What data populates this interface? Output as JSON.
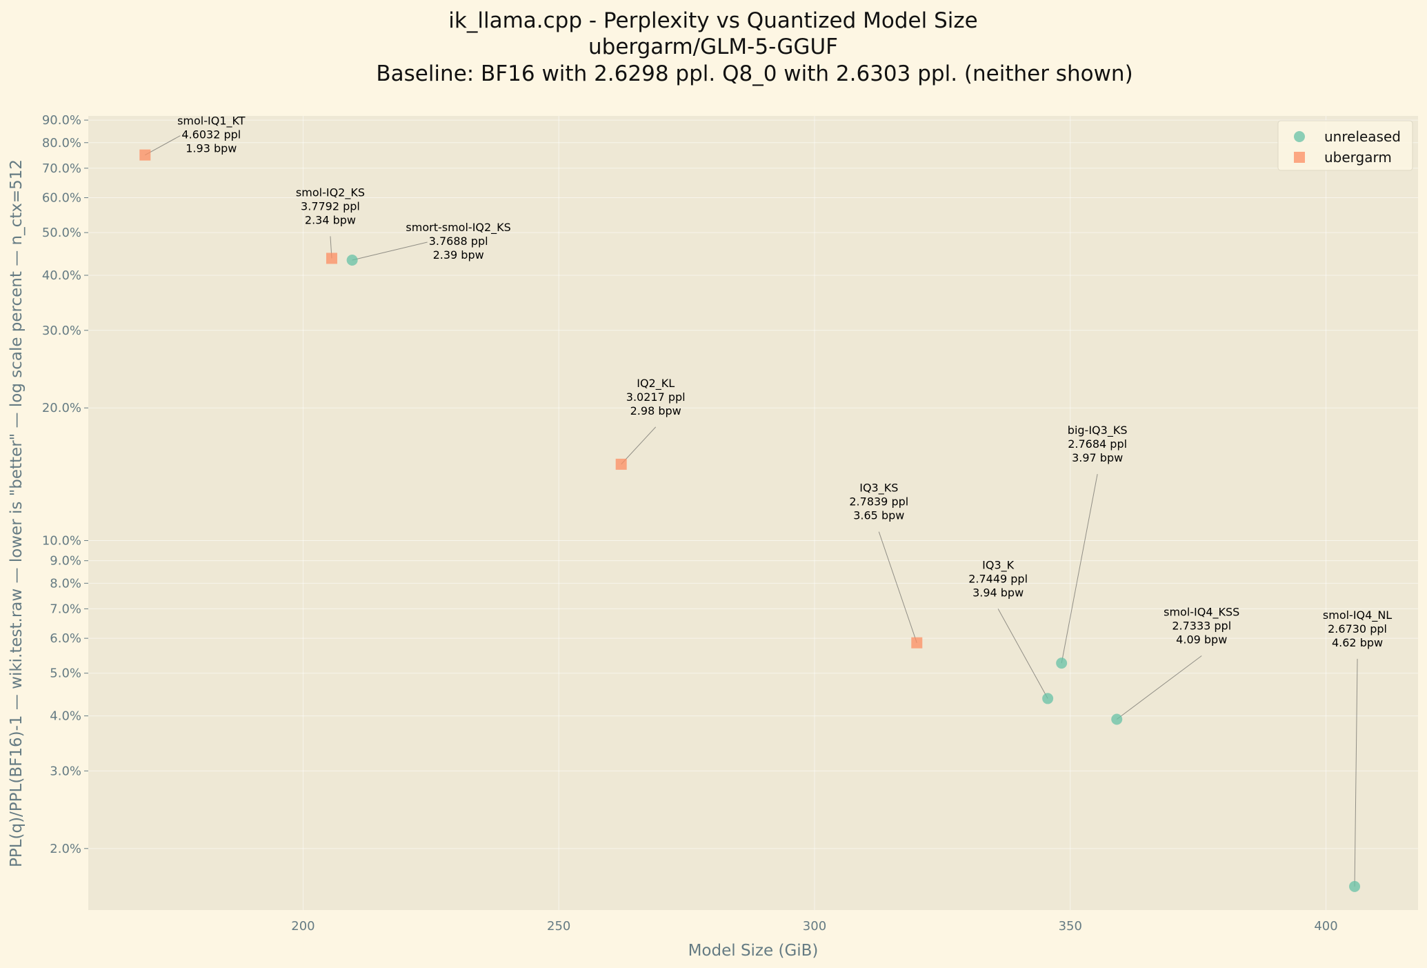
{
  "chart_data": {
    "type": "scatter",
    "title_lines": [
      "ik_llama.cpp - Perplexity vs Quantized Model Size",
      "ubergarm/GLM-5-GGUF",
      "Baseline: BF16 with 2.6298 ppl. Q8_0 with 2.6303 ppl. (neither shown)"
    ],
    "xlabel": "Model Size (GiB)",
    "ylabel": "PPL(q)/PPL(BF16)-1 — wiki.test.raw — lower is \"better\" — log scale percent — n_ctx=512",
    "xlim": [
      158,
      418
    ],
    "ylim": [
      1.45,
      92
    ],
    "yscale": "log",
    "x_ticks": [
      200,
      250,
      300,
      350,
      400
    ],
    "y_ticks": [
      2,
      3,
      4,
      5,
      6,
      7,
      8,
      9,
      10,
      20,
      30,
      40,
      50,
      60,
      70,
      80,
      90
    ],
    "y_tick_labels": [
      "2.0%",
      "3.0%",
      "4.0%",
      "5.0%",
      "6.0%",
      "7.0%",
      "8.0%",
      "9.0%",
      "10.0%",
      "20.0%",
      "30.0%",
      "40.0%",
      "50.0%",
      "60.0%",
      "70.0%",
      "80.0%",
      "90.0%"
    ],
    "grid": true,
    "legend_position": "top-right",
    "series": [
      {
        "name": "unreleased",
        "marker": "circle",
        "color": "#66c2a5",
        "points": [
          {
            "label": "smort-smol-IQ2_KS",
            "ppl": "3.7688 ppl",
            "bpw": "2.39 bpw",
            "x": 209.6,
            "y": 43.3
          },
          {
            "label": "IQ3_K",
            "ppl": "2.7449 ppl",
            "bpw": "3.94 bpw",
            "x": 345.6,
            "y": 4.38
          },
          {
            "label": "big-IQ3_KS",
            "ppl": "2.7684 ppl",
            "bpw": "3.97 bpw",
            "x": 348.3,
            "y": 5.27
          },
          {
            "label": "smol-IQ4_KSS",
            "ppl": "2.7333 ppl",
            "bpw": "4.09 bpw",
            "x": 359.1,
            "y": 3.93
          },
          {
            "label": "smol-IQ4_NL",
            "ppl": "2.6730 ppl",
            "bpw": "4.62 bpw",
            "x": 405.6,
            "y": 1.64
          }
        ]
      },
      {
        "name": "ubergarm",
        "marker": "square",
        "color": "#fc8d62",
        "points": [
          {
            "label": "smol-IQ1_KT",
            "ppl": "4.6032 ppl",
            "bpw": "1.93 bpw",
            "x": 169.1,
            "y": 75.0
          },
          {
            "label": "smol-IQ2_KS",
            "ppl": "3.7792 ppl",
            "bpw": "2.34 bpw",
            "x": 205.6,
            "y": 43.7
          },
          {
            "label": "IQ2_KL",
            "ppl": "3.0217 ppl",
            "bpw": "2.98 bpw",
            "x": 262.2,
            "y": 14.9
          },
          {
            "label": "IQ3_KS",
            "ppl": "2.7839 ppl",
            "bpw": "3.65 bpw",
            "x": 320.0,
            "y": 5.86
          }
        ]
      }
    ]
  }
}
